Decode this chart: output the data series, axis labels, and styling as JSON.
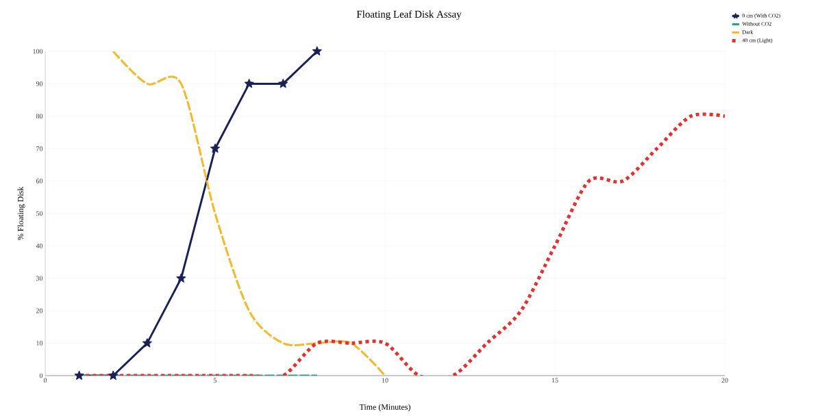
{
  "chart_data": {
    "type": "line",
    "title": "Floating Leaf Disk Assay",
    "xlabel": "Time (Minutes)",
    "ylabel": "% Floating Disk",
    "xlim": [
      0,
      20
    ],
    "xticks": [
      0,
      5,
      10,
      15,
      20
    ],
    "ylim": [
      0,
      100
    ],
    "yticks": [
      0,
      10,
      20,
      30,
      40,
      50,
      60,
      70,
      80,
      90,
      100
    ],
    "grid": true,
    "legend": "top right",
    "series": [
      {
        "name": "0 cm (With CO2)",
        "color": "#1b2157",
        "marker": "star",
        "line_style": "solid",
        "x": [
          1,
          2,
          3,
          4,
          5,
          6,
          7,
          8
        ],
        "values": [
          0,
          0,
          10,
          30,
          70,
          90,
          90,
          100
        ]
      },
      {
        "name": "Without CO2",
        "color": "#1aa386",
        "marker": "none",
        "line_style": "dashed",
        "x": [
          1,
          2,
          3,
          4,
          5,
          6,
          7,
          8
        ],
        "values": [
          0,
          0,
          0,
          0,
          0,
          0,
          0,
          0
        ]
      },
      {
        "name": "Dark",
        "color": "#f5b82a",
        "marker": "none",
        "line_style": "dashed",
        "x": [
          2,
          3,
          4,
          5,
          6,
          7,
          8,
          9,
          10
        ],
        "values": [
          100,
          90,
          90,
          50,
          20,
          10,
          10,
          10,
          0
        ]
      },
      {
        "name": "40 cm (Light)",
        "color": "#e03232",
        "marker": "none",
        "line_style": "dotted",
        "x": [
          1,
          2,
          3,
          4,
          5,
          6,
          7,
          8,
          9,
          10,
          11,
          12,
          13,
          14,
          15,
          16,
          17,
          18,
          19,
          20
        ],
        "values": [
          0,
          0,
          0,
          0,
          0,
          0,
          0,
          10,
          10,
          10,
          0,
          0,
          10,
          20,
          40,
          60,
          60,
          70,
          80,
          80
        ]
      }
    ]
  }
}
